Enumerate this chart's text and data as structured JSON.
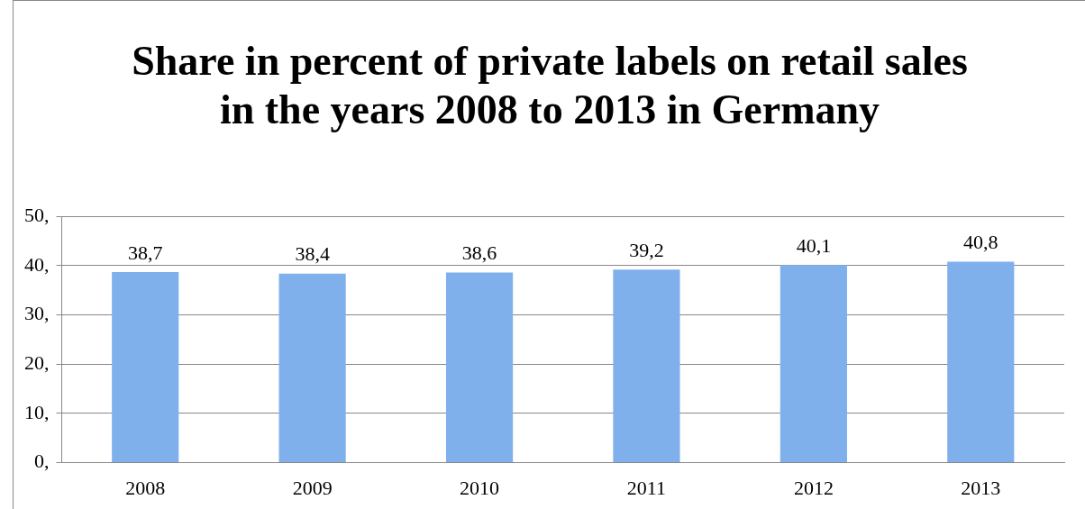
{
  "chart_data": {
    "type": "bar",
    "title": "Share in percent of private labels on retail sales in the years 2008 to 2013 in Germany",
    "categories": [
      "2008",
      "2009",
      "2010",
      "2011",
      "2012",
      "2013"
    ],
    "values": [
      38.7,
      38.4,
      38.6,
      39.2,
      40.1,
      40.8
    ],
    "value_labels": [
      "38,7",
      "38,4",
      "38,6",
      "39,2",
      "40,1",
      "40,8"
    ],
    "color": "#7fb0ec",
    "ylim": [
      0,
      50
    ],
    "yticks": [
      {
        "value": 0,
        "label": "0,"
      },
      {
        "value": 10,
        "label": "10,"
      },
      {
        "value": 20,
        "label": "20,"
      },
      {
        "value": 30,
        "label": "30,"
      },
      {
        "value": 40,
        "label": "40,"
      },
      {
        "value": 50,
        "label": "50,"
      }
    ],
    "grid": "y"
  }
}
